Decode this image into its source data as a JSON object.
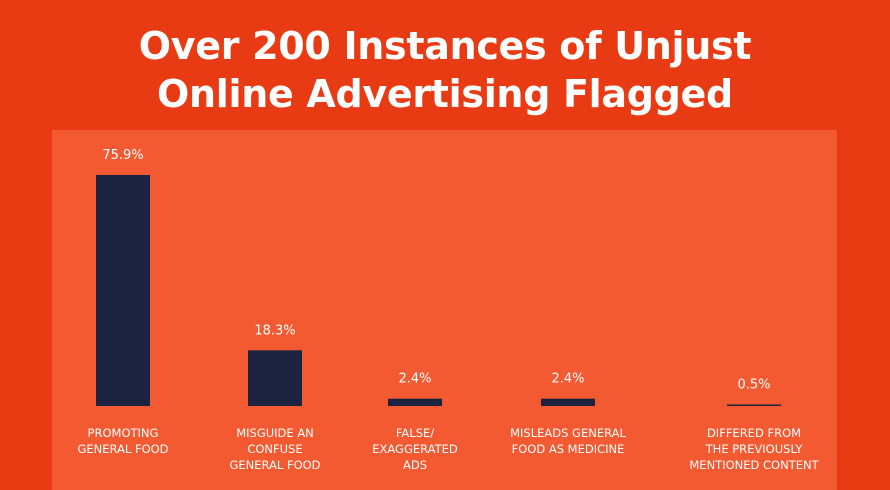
{
  "title": {
    "line1": "Over 200 Instances of Unjust",
    "line2": "Online Advertising Flagged"
  },
  "colors": {
    "background": "#e83b14",
    "panel": "#f45a31",
    "bar": "#1b2340",
    "text": "#ffffff"
  },
  "chart_data": {
    "type": "bar",
    "title": "Over 200 Instances of Unjust Online Advertising Flagged",
    "xlabel": "",
    "ylabel": "",
    "categories": [
      [
        "PROMOTING",
        "GENERAL FOOD"
      ],
      [
        "MISGUIDE AN",
        "CONFUSE",
        "GENERAL FOOD"
      ],
      [
        "FALSE/",
        "EXAGGERATED",
        "ADS"
      ],
      [
        "MISLEADS GENERAL",
        "FOOD AS MEDICINE"
      ],
      [
        "DIFFERED FROM",
        "THE PREVIOUSLY",
        "MENTIONED CONTENT"
      ]
    ],
    "values": [
      75.9,
      18.3,
      2.4,
      2.4,
      0.5
    ],
    "value_labels": [
      "75.9%",
      "18.3%",
      "2.4%",
      "2.4%",
      "0.5%"
    ],
    "ylim": [
      0,
      75.9
    ],
    "grid": false,
    "legend": "none"
  }
}
